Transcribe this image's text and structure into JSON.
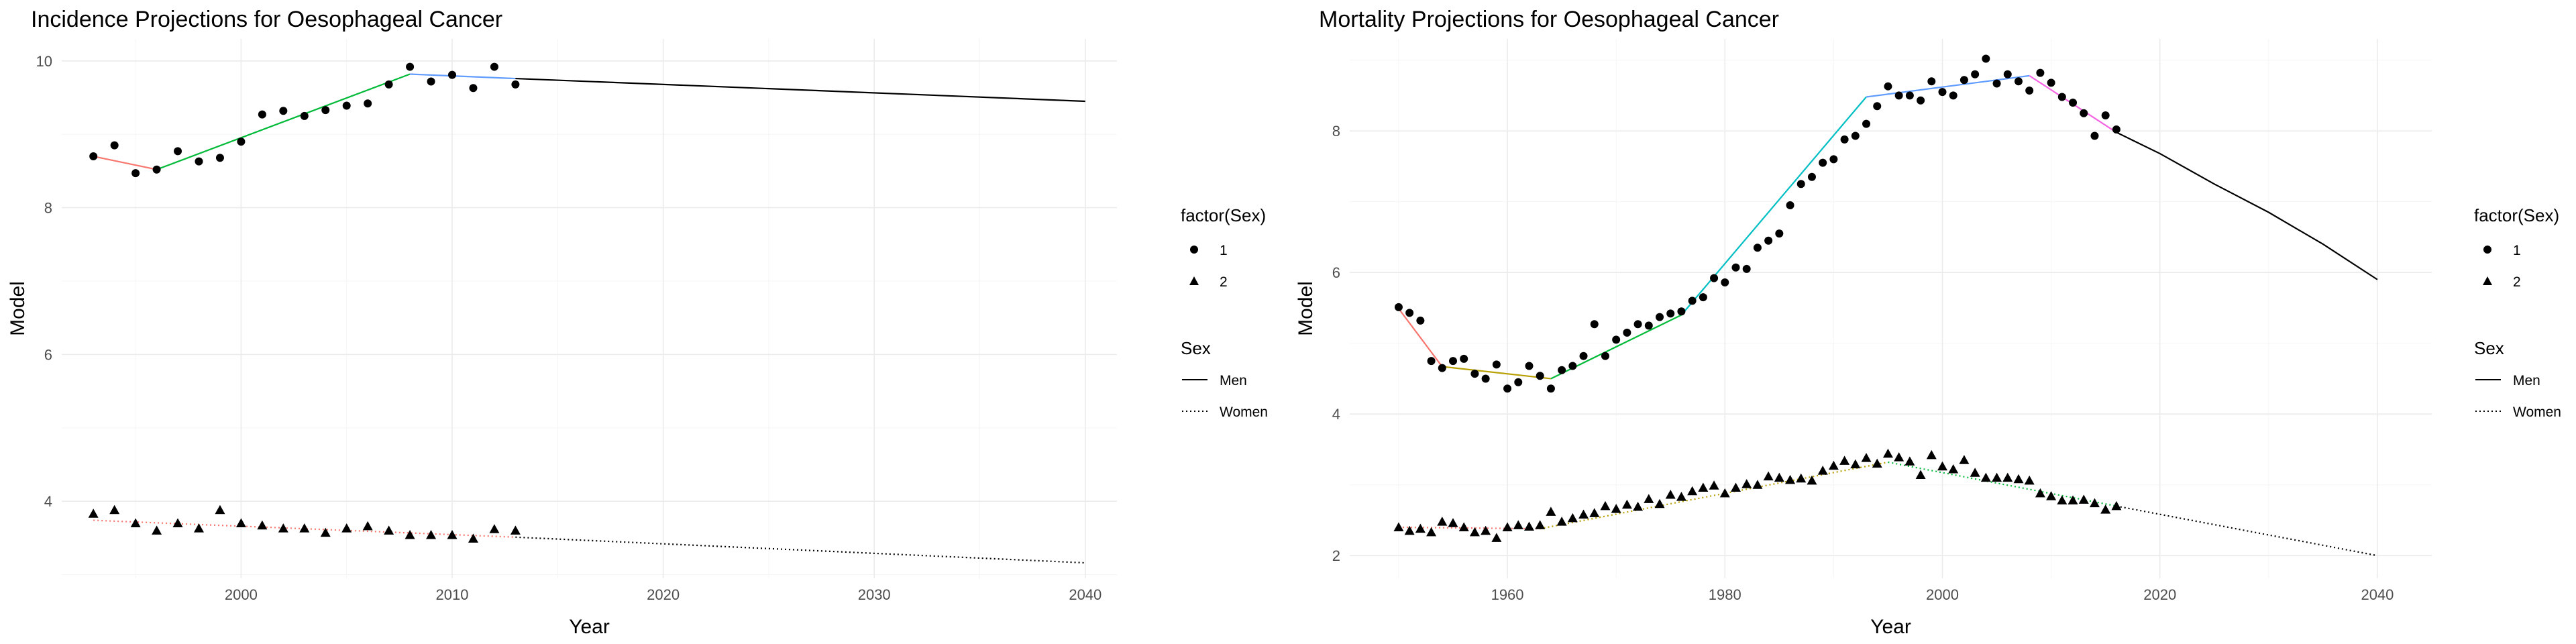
{
  "chart_data": [
    {
      "type": "line",
      "title": "Incidence Projections for Oesophageal Cancer",
      "xlabel": "Year",
      "ylabel": "Model",
      "xlim": [
        1991.5,
        2041.5
      ],
      "ylim": [
        2.95,
        10.3
      ],
      "xticks": [
        2000,
        2010,
        2020,
        2030,
        2040
      ],
      "yticks": [
        4,
        6,
        8,
        10
      ],
      "grid": true,
      "legend_position": "right",
      "legend": {
        "shape_title": "factor(Sex)",
        "shape_items": [
          {
            "label": "1",
            "shape": "circle"
          },
          {
            "label": "2",
            "shape": "triangle"
          }
        ],
        "line_title": "Sex",
        "line_items": [
          {
            "label": "Men",
            "dash": "solid"
          },
          {
            "label": "Women",
            "dash": "dotted"
          }
        ]
      },
      "points": [
        {
          "name": "1",
          "shape": "circle",
          "x": [
            1993,
            1994,
            1995,
            1996,
            1997,
            1998,
            1999,
            2000,
            2001,
            2002,
            2003,
            2004,
            2005,
            2006,
            2007,
            2008,
            2009,
            2010,
            2011,
            2012,
            2013
          ],
          "y": [
            8.7,
            8.85,
            8.47,
            8.52,
            8.77,
            8.63,
            8.68,
            8.9,
            9.27,
            9.32,
            9.25,
            9.33,
            9.39,
            9.42,
            9.68,
            9.92,
            9.72,
            9.81,
            9.63,
            9.92,
            9.68
          ]
        },
        {
          "name": "2",
          "shape": "triangle",
          "x": [
            1993,
            1994,
            1995,
            1996,
            1997,
            1998,
            1999,
            2000,
            2001,
            2002,
            2003,
            2004,
            2005,
            2006,
            2007,
            2008,
            2009,
            2010,
            2011,
            2012,
            2013
          ],
          "y": [
            3.83,
            3.88,
            3.7,
            3.6,
            3.7,
            3.63,
            3.88,
            3.7,
            3.67,
            3.63,
            3.63,
            3.57,
            3.63,
            3.66,
            3.6,
            3.54,
            3.54,
            3.54,
            3.49,
            3.62,
            3.6
          ]
        }
      ],
      "trend_segments": [
        {
          "color": "#f8766d",
          "dash": "solid",
          "x": [
            1993,
            1996
          ],
          "y": [
            8.7,
            8.52
          ]
        },
        {
          "color": "#00ba38",
          "dash": "solid",
          "x": [
            1996,
            2008
          ],
          "y": [
            8.52,
            9.82
          ]
        },
        {
          "color": "#619cff",
          "dash": "solid",
          "x": [
            2008,
            2013
          ],
          "y": [
            9.82,
            9.76
          ]
        },
        {
          "color": "#f8766d",
          "dash": "dotted",
          "x": [
            1993,
            2013
          ],
          "y": [
            3.74,
            3.51
          ]
        }
      ],
      "projections": [
        {
          "sex": "Men",
          "dash": "solid",
          "x": [
            2013,
            2040
          ],
          "y": [
            9.76,
            9.45
          ]
        },
        {
          "sex": "Women",
          "dash": "dotted",
          "x": [
            2013,
            2040
          ],
          "y": [
            3.51,
            3.16
          ]
        }
      ]
    },
    {
      "type": "line",
      "title": "Mortality Projections for Oesophageal Cancer",
      "xlabel": "Year",
      "ylabel": "Model",
      "xlim": [
        1945.5,
        2045
      ],
      "ylim": [
        1.68,
        9.3
      ],
      "xticks": [
        1960,
        1980,
        2000,
        2020,
        2040
      ],
      "yticks": [
        2,
        4,
        6,
        8
      ],
      "grid": true,
      "legend_position": "right",
      "legend": {
        "shape_title": "factor(Sex)",
        "shape_items": [
          {
            "label": "1",
            "shape": "circle"
          },
          {
            "label": "2",
            "shape": "triangle"
          }
        ],
        "line_title": "Sex",
        "line_items": [
          {
            "label": "Men",
            "dash": "solid"
          },
          {
            "label": "Women",
            "dash": "dotted"
          }
        ]
      },
      "points": [
        {
          "name": "1",
          "shape": "circle",
          "x": [
            1950,
            1951,
            1952,
            1953,
            1954,
            1955,
            1956,
            1957,
            1958,
            1959,
            1960,
            1961,
            1962,
            1963,
            1964,
            1965,
            1966,
            1967,
            1968,
            1969,
            1970,
            1971,
            1972,
            1973,
            1974,
            1975,
            1976,
            1977,
            1978,
            1979,
            1980,
            1981,
            1982,
            1983,
            1984,
            1985,
            1986,
            1987,
            1988,
            1989,
            1990,
            1991,
            1992,
            1993,
            1994,
            1995,
            1996,
            1997,
            1998,
            1999,
            2000,
            2001,
            2002,
            2003,
            2004,
            2005,
            2006,
            2007,
            2008,
            2009,
            2010,
            2011,
            2012,
            2013,
            2014,
            2015,
            2016
          ],
          "y": [
            5.51,
            5.43,
            5.32,
            4.75,
            4.65,
            4.75,
            4.78,
            4.57,
            4.5,
            4.7,
            4.36,
            4.45,
            4.68,
            4.54,
            4.36,
            4.62,
            4.68,
            4.82,
            5.27,
            4.82,
            5.05,
            5.15,
            5.27,
            5.25,
            5.37,
            5.42,
            5.45,
            5.6,
            5.65,
            5.92,
            5.86,
            6.07,
            6.05,
            6.35,
            6.45,
            6.55,
            6.95,
            7.25,
            7.35,
            7.55,
            7.6,
            7.88,
            7.93,
            8.1,
            8.35,
            8.63,
            8.5,
            8.5,
            8.43,
            8.7,
            8.55,
            8.5,
            8.72,
            8.8,
            9.02,
            8.67,
            8.8,
            8.7,
            8.57,
            8.82,
            8.68,
            8.48,
            8.4,
            8.25,
            7.93,
            8.22,
            8.02
          ]
        },
        {
          "name": "2",
          "shape": "triangle",
          "x": [
            1950,
            1951,
            1952,
            1953,
            1954,
            1955,
            1956,
            1957,
            1958,
            1959,
            1960,
            1961,
            1962,
            1963,
            1964,
            1965,
            1966,
            1967,
            1968,
            1969,
            1970,
            1971,
            1972,
            1973,
            1974,
            1975,
            1976,
            1977,
            1978,
            1979,
            1980,
            1981,
            1982,
            1983,
            1984,
            1985,
            1986,
            1987,
            1988,
            1989,
            1990,
            1991,
            1992,
            1993,
            1994,
            1995,
            1996,
            1997,
            1998,
            1999,
            2000,
            2001,
            2002,
            2003,
            2004,
            2005,
            2006,
            2007,
            2008,
            2009,
            2010,
            2011,
            2012,
            2013,
            2014,
            2015,
            2016
          ],
          "y": [
            2.4,
            2.35,
            2.38,
            2.33,
            2.48,
            2.46,
            2.4,
            2.33,
            2.35,
            2.25,
            2.4,
            2.43,
            2.41,
            2.43,
            2.62,
            2.48,
            2.53,
            2.58,
            2.6,
            2.7,
            2.66,
            2.72,
            2.69,
            2.8,
            2.73,
            2.86,
            2.83,
            2.91,
            2.96,
            2.99,
            2.88,
            2.96,
            3.01,
            3.0,
            3.12,
            3.1,
            3.07,
            3.09,
            3.06,
            3.2,
            3.27,
            3.34,
            3.29,
            3.38,
            3.3,
            3.44,
            3.39,
            3.33,
            3.14,
            3.42,
            3.26,
            3.22,
            3.35,
            3.17,
            3.1,
            3.1,
            3.1,
            3.08,
            3.06,
            2.88,
            2.84,
            2.78,
            2.78,
            2.79,
            2.74,
            2.65,
            2.7
          ]
        }
      ],
      "trend_segments": [
        {
          "color": "#f8766d",
          "dash": "solid",
          "x": [
            1950,
            1954
          ],
          "y": [
            5.49,
            4.67
          ]
        },
        {
          "color": "#b79f00",
          "dash": "solid",
          "x": [
            1954,
            1964
          ],
          "y": [
            4.67,
            4.5
          ]
        },
        {
          "color": "#00ba38",
          "dash": "solid",
          "x": [
            1964,
            1976
          ],
          "y": [
            4.5,
            5.4
          ]
        },
        {
          "color": "#00bfc4",
          "dash": "solid",
          "x": [
            1976,
            1993
          ],
          "y": [
            5.4,
            8.48
          ]
        },
        {
          "color": "#619cff",
          "dash": "solid",
          "x": [
            1993,
            2008
          ],
          "y": [
            8.48,
            8.78
          ]
        },
        {
          "color": "#f564e3",
          "dash": "solid",
          "x": [
            2008,
            2016
          ],
          "y": [
            8.78,
            7.98
          ]
        },
        {
          "color": "#f8766d",
          "dash": "dotted",
          "x": [
            1950,
            1963
          ],
          "y": [
            2.4,
            2.38
          ]
        },
        {
          "color": "#b79f00",
          "dash": "dotted",
          "x": [
            1963,
            1995
          ],
          "y": [
            2.38,
            3.32
          ]
        },
        {
          "color": "#00ba38",
          "dash": "dotted",
          "x": [
            1995,
            2016
          ],
          "y": [
            3.32,
            2.7
          ]
        }
      ],
      "projections": [
        {
          "sex": "Men",
          "dash": "solid",
          "x": [
            2016,
            2020,
            2025,
            2030,
            2035,
            2040
          ],
          "y": [
            7.98,
            7.68,
            7.25,
            6.85,
            6.4,
            5.9
          ]
        },
        {
          "sex": "Women",
          "dash": "dotted",
          "x": [
            2016,
            2040
          ],
          "y": [
            2.7,
            2.0
          ]
        }
      ]
    }
  ]
}
